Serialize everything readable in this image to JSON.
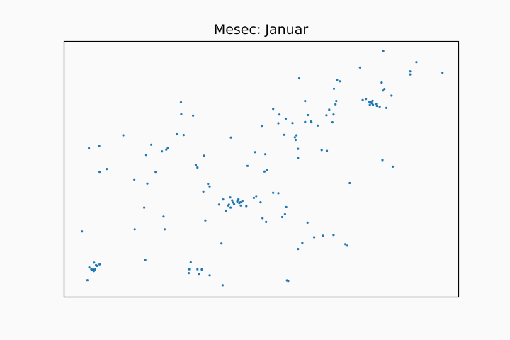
{
  "chart_data": {
    "type": "scatter",
    "title": "Mesec: Januar",
    "xlabel": "",
    "ylabel": "",
    "axes_visible": false,
    "grid": false,
    "xlim": [
      0,
      100
    ],
    "ylim": [
      0,
      100
    ],
    "point_color": "#1f77b4",
    "background_color": "#fafafa",
    "series": [
      {
        "points": [
          [
            5.9,
            6.6
          ],
          [
            6.4,
            11.6
          ],
          [
            6.9,
            10.9
          ],
          [
            7.2,
            10.6
          ],
          [
            7.4,
            10.8
          ],
          [
            7.5,
            10.2
          ],
          [
            7.9,
            10.8
          ],
          [
            7.6,
            13.5
          ],
          [
            8.1,
            12.5
          ],
          [
            8.4,
            12.2
          ],
          [
            9.0,
            12.8
          ],
          [
            4.5,
            25.7
          ],
          [
            6.3,
            58.2
          ],
          [
            8.9,
            59.2
          ],
          [
            9.0,
            49.0
          ],
          [
            10.8,
            50.1
          ],
          [
            15.0,
            63.3
          ],
          [
            17.8,
            46.0
          ],
          [
            17.9,
            26.5
          ],
          [
            20.3,
            35.0
          ],
          [
            20.6,
            14.5
          ],
          [
            20.8,
            55.6
          ],
          [
            21.1,
            44.4
          ],
          [
            22.1,
            59.6
          ],
          [
            23.2,
            49.0
          ],
          [
            24.8,
            57.0
          ],
          [
            25.2,
            31.5
          ],
          [
            25.5,
            26.5
          ],
          [
            25.9,
            57.7
          ],
          [
            26.3,
            58.3
          ],
          [
            28.6,
            63.7
          ],
          [
            29.6,
            76.2
          ],
          [
            29.7,
            71.5
          ],
          [
            30.3,
            63.4
          ],
          [
            32.7,
            71.0
          ],
          [
            31.6,
            9.4
          ],
          [
            31.7,
            10.9
          ],
          [
            32.1,
            13.6
          ],
          [
            33.8,
            10.9
          ],
          [
            34.2,
            9.1
          ],
          [
            34.9,
            10.8
          ],
          [
            36.9,
            8.5
          ],
          [
            40.2,
            4.6
          ],
          [
            39.9,
            21.0
          ],
          [
            33.4,
            51.7
          ],
          [
            33.8,
            50.7
          ],
          [
            35.3,
            41.3
          ],
          [
            35.5,
            55.3
          ],
          [
            35.8,
            30.0
          ],
          [
            36.5,
            44.3
          ],
          [
            36.9,
            43.3
          ],
          [
            39.3,
            36.2
          ],
          [
            40.3,
            38.2
          ],
          [
            41.0,
            33.8
          ],
          [
            41.6,
            35.8
          ],
          [
            41.8,
            36.2
          ],
          [
            42.1,
            39.0
          ],
          [
            42.2,
            35.0
          ],
          [
            42.8,
            37.0
          ],
          [
            42.6,
            37.8
          ],
          [
            43.1,
            36.3
          ],
          [
            43.9,
            37.4
          ],
          [
            44.0,
            37.8
          ],
          [
            44.2,
            38.3
          ],
          [
            44.4,
            36.8
          ],
          [
            44.7,
            37.1
          ],
          [
            44.8,
            35.8
          ],
          [
            45.2,
            37.6
          ],
          [
            46.2,
            35.6
          ],
          [
            48.1,
            38.8
          ],
          [
            42.3,
            62.4
          ],
          [
            46.5,
            51.3
          ],
          [
            48.4,
            56.7
          ],
          [
            48.7,
            39.5
          ],
          [
            49.8,
            37.1
          ],
          [
            50.3,
            30.9
          ],
          [
            51.2,
            29.4
          ],
          [
            50.8,
            49.1
          ],
          [
            51.5,
            49.8
          ],
          [
            50.1,
            67.0
          ],
          [
            51.0,
            55.9
          ],
          [
            53.0,
            40.8
          ],
          [
            54.3,
            40.6
          ],
          [
            55.3,
            31.3
          ],
          [
            56.0,
            32.4
          ],
          [
            56.3,
            35.2
          ],
          [
            58.5,
            62.5
          ],
          [
            58.9,
            63.3
          ],
          [
            53.0,
            73.6
          ],
          [
            54.6,
            71.4
          ],
          [
            54.3,
            68.0
          ],
          [
            56.2,
            69.8
          ],
          [
            55.8,
            63.5
          ],
          [
            58.7,
            61.5
          ],
          [
            57.9,
            68.1
          ],
          [
            56.5,
            6.5
          ],
          [
            56.8,
            6.3
          ],
          [
            59.3,
            18.8
          ],
          [
            60.4,
            21.2
          ],
          [
            61.7,
            29.1
          ],
          [
            63.4,
            23.4
          ],
          [
            65.6,
            24.0
          ],
          [
            68.3,
            24.3
          ],
          [
            71.3,
            20.7
          ],
          [
            71.8,
            20.1
          ],
          [
            59.3,
            58.0
          ],
          [
            59.3,
            54.4
          ],
          [
            59.6,
            85.6
          ],
          [
            61.1,
            76.7
          ],
          [
            61.8,
            71.2
          ],
          [
            61.1,
            68.5
          ],
          [
            62.5,
            68.7
          ],
          [
            62.7,
            68.4
          ],
          [
            64.3,
            67.1
          ],
          [
            65.3,
            57.5
          ],
          [
            66.6,
            57.2
          ],
          [
            66.5,
            71.1
          ],
          [
            67.2,
            73.3
          ],
          [
            68.0,
            68.4
          ],
          [
            68.3,
            71.4
          ],
          [
            68.8,
            75.4
          ],
          [
            68.4,
            81.5
          ],
          [
            69.0,
            76.7
          ],
          [
            69.2,
            85.0
          ],
          [
            69.9,
            84.4
          ],
          [
            72.4,
            44.6
          ],
          [
            75.0,
            89.8
          ],
          [
            75.7,
            77.1
          ],
          [
            76.5,
            77.5
          ],
          [
            77.4,
            76.3
          ],
          [
            77.5,
            75.2
          ],
          [
            77.8,
            76.3
          ],
          [
            78.3,
            75.2
          ],
          [
            78.0,
            75.8
          ],
          [
            78.2,
            76.8
          ],
          [
            79.1,
            75.6
          ],
          [
            79.3,
            74.8
          ],
          [
            80.0,
            74.5
          ],
          [
            80.8,
            80.8
          ],
          [
            80.5,
            83.9
          ],
          [
            81.2,
            81.4
          ],
          [
            80.7,
            53.6
          ],
          [
            81.7,
            74.0
          ],
          [
            83.0,
            78.8
          ],
          [
            83.3,
            51.0
          ],
          [
            80.9,
            96.3
          ],
          [
            87.7,
            87.1
          ],
          [
            87.7,
            88.3
          ],
          [
            89.3,
            91.9
          ],
          [
            95.9,
            87.8
          ]
        ]
      }
    ]
  }
}
